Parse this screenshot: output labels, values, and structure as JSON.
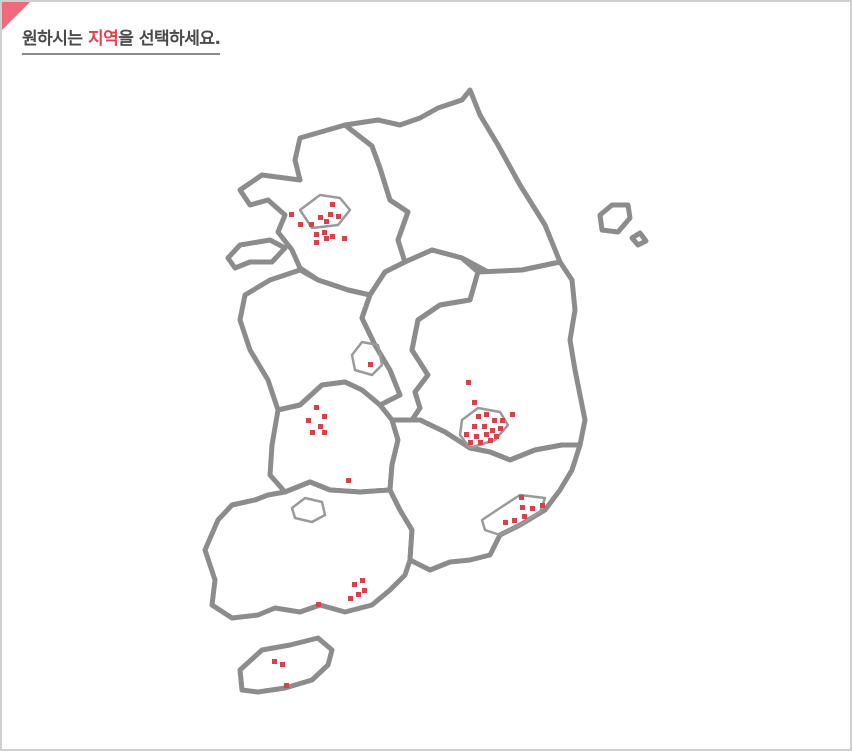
{
  "header": {
    "prefix": "원하시는 ",
    "highlight": "지역",
    "suffix": "을 선택하세요."
  },
  "colors": {
    "accent": "#e4404f",
    "border": "#8c8c8c",
    "marker": "#d9404a"
  },
  "map": {
    "regions": [
      "gyeonggi",
      "gangwon",
      "chungbuk",
      "chungnam",
      "jeonbuk",
      "jeonnam",
      "gyeongbuk",
      "gyeongnam",
      "jeju"
    ],
    "markers": {
      "seoul": 14,
      "daegu": 18,
      "daejeon": 7,
      "sejong": 1,
      "busan": 7,
      "jeonnam_south": 6,
      "jeonbuk": 1,
      "jeju": 3
    }
  }
}
